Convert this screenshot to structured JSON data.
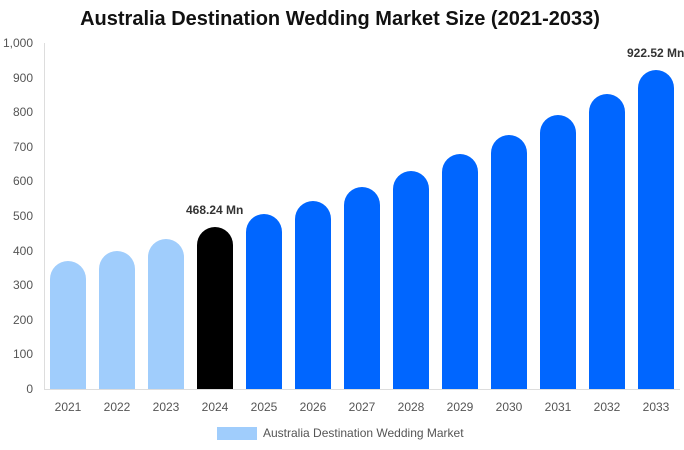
{
  "chart_data": {
    "type": "bar",
    "title": "Australia Destination Wedding Market Size (2021-2033)",
    "xlabel": "",
    "ylabel": "",
    "ylim": [
      0,
      1000
    ],
    "yticks": [
      "0",
      "100",
      "200",
      "300",
      "400",
      "500",
      "600",
      "700",
      "800",
      "900",
      "1,000"
    ],
    "categories": [
      "2021",
      "2022",
      "2023",
      "2024",
      "2025",
      "2026",
      "2027",
      "2028",
      "2029",
      "2030",
      "2031",
      "2032",
      "2033"
    ],
    "series": [
      {
        "name": "Australia Destination Wedding Market",
        "values": [
          370,
          400,
          433,
          468.24,
          505,
          543,
          583,
          630,
          680,
          733,
          791,
          853,
          922.52
        ]
      }
    ],
    "annotations": [
      {
        "category": "2024",
        "text": "468.24 Mn"
      },
      {
        "category": "2033",
        "text": "922.52 Mn"
      }
    ],
    "colors": {
      "historic": "#a0cdfc",
      "base_year": "#000000",
      "forecast": "#0066ff"
    },
    "legend_position": "bottom",
    "grid": false
  }
}
